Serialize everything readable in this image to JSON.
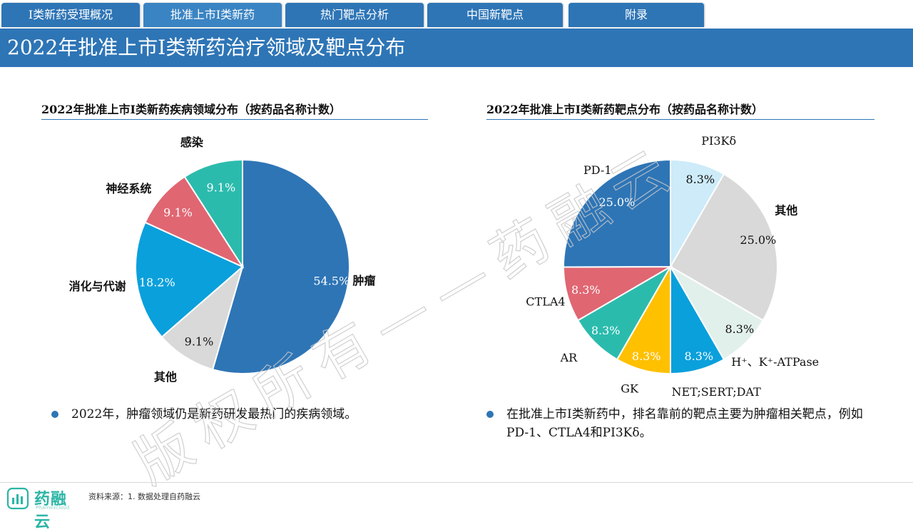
{
  "tabs": [
    {
      "label": "I类新药受理概况"
    },
    {
      "label": "批准上市I类新药"
    },
    {
      "label": "热门靶点分析"
    },
    {
      "label": "中国新靶点"
    },
    {
      "label": "附录"
    }
  ],
  "header": {
    "title": "2022年批准上市I类新药治疗领域及靶点分布"
  },
  "left": {
    "subtitle": "2022年批准上市I类新药疾病领域分布（按药品名称计数）",
    "bullet": "2022年，肿瘤领域仍是新药研发最热门的疾病领域。"
  },
  "right": {
    "subtitle": "2022年批准上市I类新药靶点分布（按药品名称计数）",
    "bullet": "在批准上市I类新药中，排名靠前的靶点主要为肿瘤相关靶点，例如PD-1、CTLA4和PI3Kδ。"
  },
  "watermark": "版权所有——药融云",
  "footer": {
    "logo_text": "药融云",
    "logo_sub": "Pharnexcloud",
    "source": "资料来源：1. 数据处理自药融云"
  },
  "colors": {
    "primary": "#2E75B6",
    "teal": "#2BBBAD",
    "red": "#E06672",
    "cyan": "#0AA0DC",
    "gray": "#D9D9D9",
    "light_blue": "#CDEBF9",
    "light_green": "#E2F0EC",
    "yellow": "#FFC000"
  },
  "chart_data": [
    {
      "type": "pie",
      "title": "2022年批准上市I类新药疾病领域分布（按药品名称计数）",
      "slices": [
        {
          "label": "肿瘤",
          "value": 54.5,
          "value_label": "54.5%",
          "color": "#2E75B6"
        },
        {
          "label": "其他",
          "value": 9.1,
          "value_label": "9.1%",
          "color": "#D9D9D9"
        },
        {
          "label": "消化与代谢",
          "value": 18.2,
          "value_label": "18.2%",
          "color": "#0AA0DC"
        },
        {
          "label": "神经系统",
          "value": 9.1,
          "value_label": "9.1%",
          "color": "#E06672"
        },
        {
          "label": "感染",
          "value": 9.1,
          "value_label": "9.1%",
          "color": "#2BBBAD"
        }
      ]
    },
    {
      "type": "pie",
      "title": "2022年批准上市I类新药靶点分布（按药品名称计数）",
      "slices": [
        {
          "label": "PI3Kδ",
          "value": 8.3,
          "value_label": "8.3%",
          "color": "#CDEBF9"
        },
        {
          "label": "其他",
          "value": 25.0,
          "value_label": "25.0%",
          "color": "#D9D9D9"
        },
        {
          "label": "H⁺、K⁺-ATPase",
          "value": 8.3,
          "value_label": "8.3%",
          "color": "#E2F0EC"
        },
        {
          "label": "NET;SERT;DAT",
          "value": 8.3,
          "value_label": "8.3%",
          "color": "#0AA0DC"
        },
        {
          "label": "GK",
          "value": 8.3,
          "value_label": "8.3%",
          "color": "#FFC000"
        },
        {
          "label": "AR",
          "value": 8.3,
          "value_label": "8.3%",
          "color": "#2BBBAD"
        },
        {
          "label": "CTLA4",
          "value": 8.3,
          "value_label": "8.3%",
          "color": "#E06672"
        },
        {
          "label": "PD-1",
          "value": 25.0,
          "value_label": "25.0%",
          "color": "#2E75B6"
        }
      ]
    }
  ]
}
